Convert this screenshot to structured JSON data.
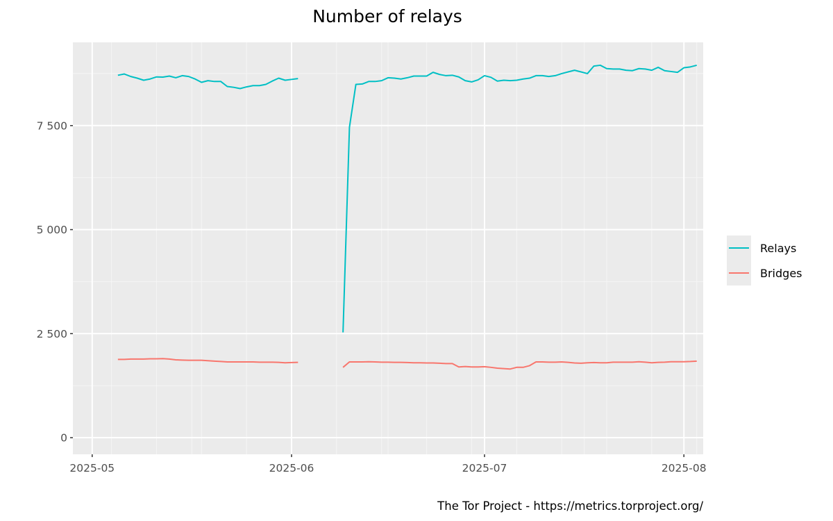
{
  "colors": {
    "panel_background": "#ebebeb",
    "grid_major": "#ffffff",
    "grid_minor": "#f5f5f5",
    "tick": "#333333",
    "relays": "#00bfc4",
    "bridges": "#f8766d"
  },
  "chart_data": {
    "type": "line",
    "title": "Number of relays",
    "caption": "The Tor Project - https://metrics.torproject.org/",
    "xlabel": "",
    "ylabel": "",
    "x_axis": {
      "type": "date",
      "range": [
        "2025-04-28",
        "2025-08-04"
      ],
      "ticks": [
        {
          "value": "2025-05-01",
          "label": "2025-05"
        },
        {
          "value": "2025-06-01",
          "label": "2025-06"
        },
        {
          "value": "2025-07-01",
          "label": "2025-07"
        },
        {
          "value": "2025-08-01",
          "label": "2025-08"
        }
      ]
    },
    "y_axis": {
      "range": [
        -400,
        9500
      ],
      "ticks": [
        {
          "value": 0,
          "label": "0"
        },
        {
          "value": 2500,
          "label": "2 500"
        },
        {
          "value": 5000,
          "label": "5 000"
        },
        {
          "value": 7500,
          "label": "7 500"
        }
      ]
    },
    "grid": true,
    "legend": {
      "position": "right",
      "entries": [
        "Relays",
        "Bridges"
      ]
    },
    "series": [
      {
        "name": "Relays",
        "segments": [
          [
            {
              "x": "2025-05-05",
              "y": 8710
            },
            {
              "x": "2025-05-06",
              "y": 8740
            },
            {
              "x": "2025-05-07",
              "y": 8680
            },
            {
              "x": "2025-05-08",
              "y": 8640
            },
            {
              "x": "2025-05-09",
              "y": 8590
            },
            {
              "x": "2025-05-10",
              "y": 8620
            },
            {
              "x": "2025-05-11",
              "y": 8670
            },
            {
              "x": "2025-05-12",
              "y": 8665
            },
            {
              "x": "2025-05-13",
              "y": 8690
            },
            {
              "x": "2025-05-14",
              "y": 8650
            },
            {
              "x": "2025-05-15",
              "y": 8700
            },
            {
              "x": "2025-05-16",
              "y": 8680
            },
            {
              "x": "2025-05-17",
              "y": 8620
            },
            {
              "x": "2025-05-18",
              "y": 8540
            },
            {
              "x": "2025-05-19",
              "y": 8580
            },
            {
              "x": "2025-05-20",
              "y": 8560
            },
            {
              "x": "2025-05-21",
              "y": 8560
            },
            {
              "x": "2025-05-22",
              "y": 8440
            },
            {
              "x": "2025-05-23",
              "y": 8420
            },
            {
              "x": "2025-05-24",
              "y": 8390
            },
            {
              "x": "2025-05-25",
              "y": 8430
            },
            {
              "x": "2025-05-26",
              "y": 8460
            },
            {
              "x": "2025-05-27",
              "y": 8460
            },
            {
              "x": "2025-05-28",
              "y": 8490
            },
            {
              "x": "2025-05-29",
              "y": 8570
            },
            {
              "x": "2025-05-30",
              "y": 8640
            },
            {
              "x": "2025-05-31",
              "y": 8590
            },
            {
              "x": "2025-06-01",
              "y": 8610
            },
            {
              "x": "2025-06-02",
              "y": 8630
            }
          ],
          [
            {
              "x": "2025-06-09",
              "y": 2530
            },
            {
              "x": "2025-06-10",
              "y": 7460
            },
            {
              "x": "2025-06-11",
              "y": 8490
            },
            {
              "x": "2025-06-12",
              "y": 8500
            },
            {
              "x": "2025-06-13",
              "y": 8560
            },
            {
              "x": "2025-06-14",
              "y": 8560
            },
            {
              "x": "2025-06-15",
              "y": 8580
            },
            {
              "x": "2025-06-16",
              "y": 8650
            },
            {
              "x": "2025-06-17",
              "y": 8640
            },
            {
              "x": "2025-06-18",
              "y": 8620
            },
            {
              "x": "2025-06-19",
              "y": 8650
            },
            {
              "x": "2025-06-20",
              "y": 8690
            },
            {
              "x": "2025-06-21",
              "y": 8690
            },
            {
              "x": "2025-06-22",
              "y": 8690
            },
            {
              "x": "2025-06-23",
              "y": 8780
            },
            {
              "x": "2025-06-24",
              "y": 8730
            },
            {
              "x": "2025-06-25",
              "y": 8700
            },
            {
              "x": "2025-06-26",
              "y": 8710
            },
            {
              "x": "2025-06-27",
              "y": 8670
            },
            {
              "x": "2025-06-28",
              "y": 8580
            },
            {
              "x": "2025-06-29",
              "y": 8550
            },
            {
              "x": "2025-06-30",
              "y": 8600
            },
            {
              "x": "2025-07-01",
              "y": 8700
            },
            {
              "x": "2025-07-02",
              "y": 8660
            },
            {
              "x": "2025-07-03",
              "y": 8570
            },
            {
              "x": "2025-07-04",
              "y": 8590
            },
            {
              "x": "2025-07-05",
              "y": 8580
            },
            {
              "x": "2025-07-06",
              "y": 8590
            },
            {
              "x": "2025-07-07",
              "y": 8620
            },
            {
              "x": "2025-07-08",
              "y": 8640
            },
            {
              "x": "2025-07-09",
              "y": 8700
            },
            {
              "x": "2025-07-10",
              "y": 8700
            },
            {
              "x": "2025-07-11",
              "y": 8680
            },
            {
              "x": "2025-07-12",
              "y": 8700
            },
            {
              "x": "2025-07-13",
              "y": 8750
            },
            {
              "x": "2025-07-14",
              "y": 8790
            },
            {
              "x": "2025-07-15",
              "y": 8830
            },
            {
              "x": "2025-07-16",
              "y": 8790
            },
            {
              "x": "2025-07-17",
              "y": 8750
            },
            {
              "x": "2025-07-18",
              "y": 8930
            },
            {
              "x": "2025-07-19",
              "y": 8950
            },
            {
              "x": "2025-07-20",
              "y": 8870
            },
            {
              "x": "2025-07-21",
              "y": 8860
            },
            {
              "x": "2025-07-22",
              "y": 8860
            },
            {
              "x": "2025-07-23",
              "y": 8830
            },
            {
              "x": "2025-07-24",
              "y": 8820
            },
            {
              "x": "2025-07-25",
              "y": 8870
            },
            {
              "x": "2025-07-26",
              "y": 8860
            },
            {
              "x": "2025-07-27",
              "y": 8830
            },
            {
              "x": "2025-07-28",
              "y": 8900
            },
            {
              "x": "2025-07-29",
              "y": 8820
            },
            {
              "x": "2025-07-30",
              "y": 8800
            },
            {
              "x": "2025-07-31",
              "y": 8780
            },
            {
              "x": "2025-08-01",
              "y": 8890
            },
            {
              "x": "2025-08-02",
              "y": 8910
            },
            {
              "x": "2025-08-03",
              "y": 8950
            }
          ]
        ]
      },
      {
        "name": "Bridges",
        "segments": [
          [
            {
              "x": "2025-05-05",
              "y": 1880
            },
            {
              "x": "2025-05-06",
              "y": 1880
            },
            {
              "x": "2025-05-07",
              "y": 1890
            },
            {
              "x": "2025-05-08",
              "y": 1890
            },
            {
              "x": "2025-05-09",
              "y": 1890
            },
            {
              "x": "2025-05-10",
              "y": 1895
            },
            {
              "x": "2025-05-11",
              "y": 1895
            },
            {
              "x": "2025-05-12",
              "y": 1900
            },
            {
              "x": "2025-05-13",
              "y": 1890
            },
            {
              "x": "2025-05-14",
              "y": 1870
            },
            {
              "x": "2025-05-15",
              "y": 1865
            },
            {
              "x": "2025-05-16",
              "y": 1860
            },
            {
              "x": "2025-05-17",
              "y": 1860
            },
            {
              "x": "2025-05-18",
              "y": 1860
            },
            {
              "x": "2025-05-19",
              "y": 1850
            },
            {
              "x": "2025-05-20",
              "y": 1840
            },
            {
              "x": "2025-05-21",
              "y": 1830
            },
            {
              "x": "2025-05-22",
              "y": 1820
            },
            {
              "x": "2025-05-23",
              "y": 1820
            },
            {
              "x": "2025-05-24",
              "y": 1820
            },
            {
              "x": "2025-05-25",
              "y": 1820
            },
            {
              "x": "2025-05-26",
              "y": 1820
            },
            {
              "x": "2025-05-27",
              "y": 1815
            },
            {
              "x": "2025-05-28",
              "y": 1815
            },
            {
              "x": "2025-05-29",
              "y": 1815
            },
            {
              "x": "2025-05-30",
              "y": 1810
            },
            {
              "x": "2025-05-31",
              "y": 1800
            },
            {
              "x": "2025-06-01",
              "y": 1805
            },
            {
              "x": "2025-06-02",
              "y": 1810
            }
          ],
          [
            {
              "x": "2025-06-09",
              "y": 1690
            },
            {
              "x": "2025-06-10",
              "y": 1820
            },
            {
              "x": "2025-06-11",
              "y": 1820
            },
            {
              "x": "2025-06-12",
              "y": 1820
            },
            {
              "x": "2025-06-13",
              "y": 1825
            },
            {
              "x": "2025-06-14",
              "y": 1820
            },
            {
              "x": "2025-06-15",
              "y": 1815
            },
            {
              "x": "2025-06-16",
              "y": 1815
            },
            {
              "x": "2025-06-17",
              "y": 1810
            },
            {
              "x": "2025-06-18",
              "y": 1810
            },
            {
              "x": "2025-06-19",
              "y": 1805
            },
            {
              "x": "2025-06-20",
              "y": 1800
            },
            {
              "x": "2025-06-21",
              "y": 1800
            },
            {
              "x": "2025-06-22",
              "y": 1795
            },
            {
              "x": "2025-06-23",
              "y": 1795
            },
            {
              "x": "2025-06-24",
              "y": 1790
            },
            {
              "x": "2025-06-25",
              "y": 1780
            },
            {
              "x": "2025-06-26",
              "y": 1780
            },
            {
              "x": "2025-06-27",
              "y": 1700
            },
            {
              "x": "2025-06-28",
              "y": 1710
            },
            {
              "x": "2025-06-29",
              "y": 1700
            },
            {
              "x": "2025-06-30",
              "y": 1700
            },
            {
              "x": "2025-07-01",
              "y": 1705
            },
            {
              "x": "2025-07-02",
              "y": 1690
            },
            {
              "x": "2025-07-03",
              "y": 1670
            },
            {
              "x": "2025-07-04",
              "y": 1660
            },
            {
              "x": "2025-07-05",
              "y": 1650
            },
            {
              "x": "2025-07-06",
              "y": 1690
            },
            {
              "x": "2025-07-07",
              "y": 1690
            },
            {
              "x": "2025-07-08",
              "y": 1730
            },
            {
              "x": "2025-07-09",
              "y": 1820
            },
            {
              "x": "2025-07-10",
              "y": 1820
            },
            {
              "x": "2025-07-11",
              "y": 1815
            },
            {
              "x": "2025-07-12",
              "y": 1815
            },
            {
              "x": "2025-07-13",
              "y": 1820
            },
            {
              "x": "2025-07-14",
              "y": 1810
            },
            {
              "x": "2025-07-15",
              "y": 1795
            },
            {
              "x": "2025-07-16",
              "y": 1790
            },
            {
              "x": "2025-07-17",
              "y": 1800
            },
            {
              "x": "2025-07-18",
              "y": 1805
            },
            {
              "x": "2025-07-19",
              "y": 1800
            },
            {
              "x": "2025-07-20",
              "y": 1800
            },
            {
              "x": "2025-07-21",
              "y": 1815
            },
            {
              "x": "2025-07-22",
              "y": 1815
            },
            {
              "x": "2025-07-23",
              "y": 1815
            },
            {
              "x": "2025-07-24",
              "y": 1815
            },
            {
              "x": "2025-07-25",
              "y": 1825
            },
            {
              "x": "2025-07-26",
              "y": 1815
            },
            {
              "x": "2025-07-27",
              "y": 1800
            },
            {
              "x": "2025-07-28",
              "y": 1810
            },
            {
              "x": "2025-07-29",
              "y": 1815
            },
            {
              "x": "2025-07-30",
              "y": 1825
            },
            {
              "x": "2025-07-31",
              "y": 1825
            },
            {
              "x": "2025-08-01",
              "y": 1825
            },
            {
              "x": "2025-08-02",
              "y": 1830
            },
            {
              "x": "2025-08-03",
              "y": 1840
            }
          ]
        ]
      }
    ]
  }
}
